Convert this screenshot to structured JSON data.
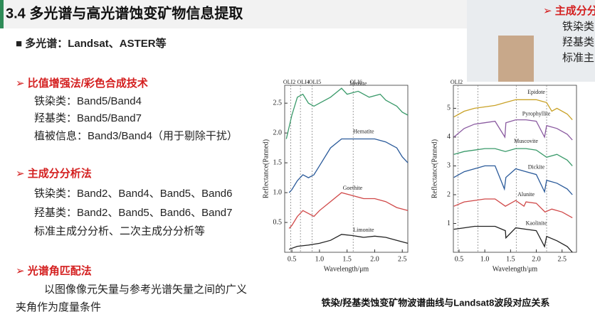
{
  "slide": {
    "title": "3.4 多光谱与高光谱蚀变矿物信息提取",
    "lines": [
      "■ 多光谱：Landsat、ASTER等",
      "➢ 比值增强法/彩色合成技术",
      "铁染类：Band5/Band4",
      "羟基类：Band5/Band7",
      "植被信息：Band3/Band4（用于剔除干扰）",
      "➢ 主成分分析法",
      "铁染类：Band2、Band4、Band5、Band6",
      "羟基类：Band2、Band5、Band6、Band7",
      "标准主成分分析、二次主成分分析等",
      "➢ 光谱角匹配法",
      "以图像像元矢量与参考光谱矢量之间的广义",
      "夹角作为度量条件"
    ],
    "caption": "铁染/羟基类蚀变矿物波谱曲线与Landsat8波段对应关系",
    "inset_lines": [
      "➢ 主成分分",
      "铁染类",
      "羟基类",
      "标准主"
    ]
  },
  "chart_data": [
    {
      "type": "line",
      "x_label": "Wavelength/μm",
      "y_label": "Reflectance(Panned)",
      "xlim": [
        0.37,
        2.6
      ],
      "ylim": [
        0,
        2.8
      ],
      "xticks": [
        0.5,
        {
          "value": 1,
          "label": "1.0"
        },
        1.5,
        {
          "value": 2,
          "label": "2.0"
        },
        2.5
      ],
      "yticks": [
        0.5,
        {
          "value": 1,
          "label": "1.0"
        },
        1.5,
        {
          "value": 2,
          "label": "2.0"
        },
        2.5
      ],
      "band_lines": [
        {
          "label": "OLI2",
          "x": 0.48
        },
        {
          "label": "OLI4",
          "x": 0.655
        },
        {
          "label": "OLI5",
          "x": 0.865
        },
        {
          "label": "OLI6",
          "x": 1.61
        }
      ],
      "series": [
        {
          "name": "Jarosite",
          "color": "#3a9a6a",
          "x": [
            0.4,
            0.5,
            0.6,
            0.7,
            0.8,
            0.9,
            1.0,
            1.2,
            1.4,
            1.5,
            1.7,
            1.9,
            2.1,
            2.2,
            2.3,
            2.4,
            2.5,
            2.6
          ],
          "values": [
            1.9,
            2.3,
            2.6,
            2.65,
            2.5,
            2.45,
            2.5,
            2.6,
            2.75,
            2.65,
            2.7,
            2.6,
            2.65,
            2.55,
            2.5,
            2.45,
            2.35,
            2.3
          ]
        },
        {
          "name": "Hematite",
          "color": "#2a5a9a",
          "x": [
            0.45,
            0.5,
            0.6,
            0.7,
            0.8,
            0.9,
            1.0,
            1.2,
            1.4,
            1.6,
            1.8,
            2.0,
            2.2,
            2.3,
            2.4,
            2.5,
            2.6
          ],
          "values": [
            1.0,
            1.05,
            1.2,
            1.3,
            1.25,
            1.3,
            1.45,
            1.75,
            1.9,
            1.9,
            1.9,
            1.9,
            1.85,
            1.8,
            1.75,
            1.6,
            1.5
          ]
        },
        {
          "name": "Goethite",
          "color": "#d04848",
          "x": [
            0.45,
            0.5,
            0.6,
            0.7,
            0.8,
            0.9,
            1.0,
            1.2,
            1.4,
            1.6,
            1.8,
            2.0,
            2.2,
            2.4,
            2.6
          ],
          "values": [
            0.4,
            0.45,
            0.6,
            0.7,
            0.65,
            0.6,
            0.7,
            0.85,
            1.0,
            0.95,
            0.9,
            0.9,
            0.85,
            0.75,
            0.7
          ]
        },
        {
          "name": "Limonite",
          "color": "#222222",
          "x": [
            0.45,
            0.6,
            0.8,
            1.0,
            1.2,
            1.4,
            1.6,
            1.8,
            2.0,
            2.2,
            2.4,
            2.6
          ],
          "values": [
            0.05,
            0.1,
            0.12,
            0.15,
            0.2,
            0.3,
            0.28,
            0.25,
            0.27,
            0.25,
            0.2,
            0.15
          ]
        }
      ]
    },
    {
      "type": "line",
      "x_label": "Wavelength/μm",
      "y_label": "Reflectance(Panned)",
      "xlim": [
        0.39,
        2.78
      ],
      "ylim": [
        0,
        5.8
      ],
      "xticks": [
        0.5,
        {
          "value": 1,
          "label": "1.0"
        },
        1.5,
        {
          "value": 2,
          "label": "2.0"
        },
        2.5
      ],
      "yticks": [
        1,
        2,
        3,
        4,
        5
      ],
      "band_lines": [
        {
          "label": "OLI2",
          "x": 0.48
        },
        {
          "x": 0.865
        },
        {
          "x": 1.61
        },
        {
          "x": 2.2
        }
      ],
      "series": [
        {
          "name": "Epidote",
          "color": "#c9a227",
          "x": [
            0.4,
            0.6,
            0.8,
            1.0,
            1.2,
            1.4,
            1.6,
            1.8,
            2.0,
            2.2,
            2.3,
            2.4,
            2.6,
            2.7
          ],
          "values": [
            4.7,
            4.9,
            5.0,
            5.05,
            5.1,
            5.2,
            5.3,
            5.3,
            5.3,
            5.2,
            4.9,
            5.0,
            4.8,
            4.6
          ]
        },
        {
          "name": "Pyrophyllite",
          "color": "#8a5aa0",
          "x": [
            0.4,
            0.6,
            0.8,
            1.0,
            1.2,
            1.39,
            1.41,
            1.6,
            1.8,
            2.0,
            2.16,
            2.2,
            2.4,
            2.6,
            2.7
          ],
          "values": [
            4.0,
            4.3,
            4.45,
            4.5,
            4.55,
            4.0,
            4.5,
            4.6,
            4.6,
            4.55,
            4.0,
            4.4,
            4.3,
            4.1,
            3.9
          ]
        },
        {
          "name": "Muscovite",
          "color": "#3a9a6a",
          "x": [
            0.4,
            0.6,
            0.8,
            1.0,
            1.2,
            1.4,
            1.6,
            1.8,
            2.0,
            2.2,
            2.4,
            2.6,
            2.7
          ],
          "values": [
            3.4,
            3.5,
            3.55,
            3.6,
            3.6,
            3.5,
            3.6,
            3.6,
            3.55,
            3.3,
            3.4,
            3.2,
            3.0
          ]
        },
        {
          "name": "Dickite",
          "color": "#2a5a9a",
          "x": [
            0.4,
            0.6,
            0.8,
            1.0,
            1.2,
            1.38,
            1.41,
            1.6,
            1.8,
            2.0,
            2.16,
            2.2,
            2.4,
            2.6,
            2.7
          ],
          "values": [
            2.6,
            2.8,
            2.9,
            3.0,
            3.0,
            2.2,
            2.6,
            2.9,
            2.8,
            2.7,
            2.1,
            2.5,
            2.4,
            2.2,
            2.0
          ]
        },
        {
          "name": "Alunite",
          "color": "#d04848",
          "x": [
            0.4,
            0.6,
            0.8,
            1.0,
            1.2,
            1.4,
            1.6,
            1.76,
            1.8,
            2.0,
            2.17,
            2.3,
            2.5,
            2.7
          ],
          "values": [
            1.6,
            1.75,
            1.8,
            1.85,
            1.85,
            1.6,
            1.8,
            1.6,
            1.75,
            1.7,
            1.4,
            1.5,
            1.4,
            1.2
          ]
        },
        {
          "name": "Kaolinite",
          "color": "#222222",
          "x": [
            0.4,
            0.6,
            0.8,
            1.0,
            1.2,
            1.4,
            1.41,
            1.6,
            1.8,
            2.0,
            2.16,
            2.2,
            2.4,
            2.6,
            2.7
          ],
          "values": [
            0.8,
            0.85,
            0.9,
            0.9,
            0.9,
            0.75,
            0.5,
            0.85,
            0.8,
            0.75,
            0.2,
            0.55,
            0.4,
            0.2,
            0.0
          ]
        }
      ]
    }
  ]
}
